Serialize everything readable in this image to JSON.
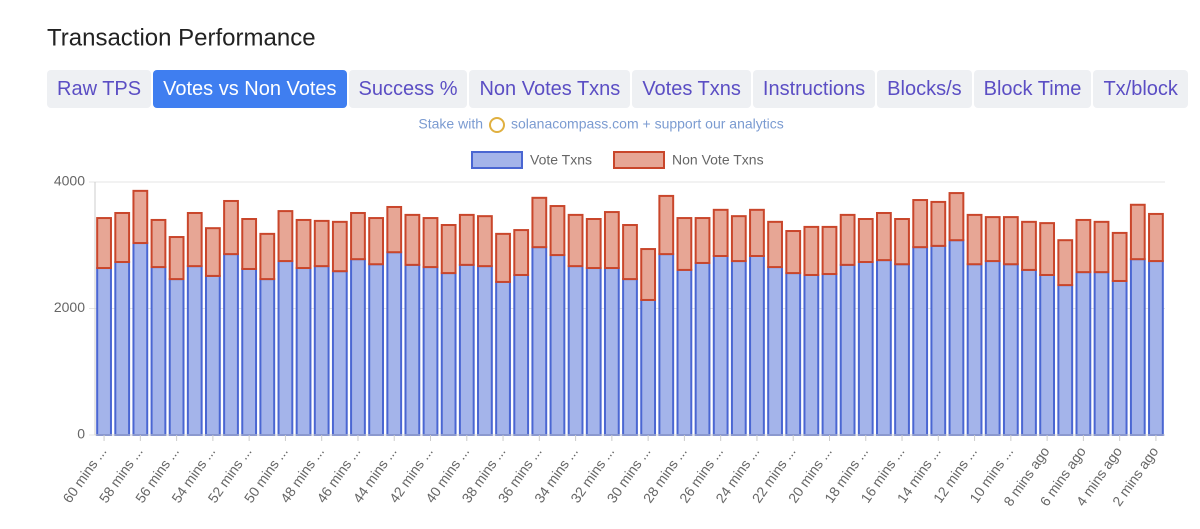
{
  "title": "Transaction Performance",
  "tabs": [
    "Raw TPS",
    "Votes vs Non Votes",
    "Success %",
    "Non Votes Txns",
    "Votes Txns",
    "Instructions",
    "Blocks/s",
    "Block Time",
    "Tx/block"
  ],
  "active_tab": 1,
  "promo": {
    "lead": "Stake with",
    "link": "solanacompass.com + support our analytics"
  },
  "chart_data": {
    "type": "stacked_bar",
    "categories": [
      "60 mins ...",
      null,
      "58 mins ...",
      null,
      "56 mins ...",
      null,
      "54 mins ...",
      null,
      "52 mins ...",
      null,
      "50 mins ...",
      null,
      "48 mins ...",
      null,
      "46 mins ...",
      null,
      "44 mins ...",
      null,
      "42 mins ...",
      null,
      "40 mins ...",
      null,
      "38 mins ...",
      null,
      "36 mins ...",
      null,
      "34 mins ...",
      null,
      "32 mins ...",
      null,
      "30 mins ...",
      null,
      "28 mins ...",
      null,
      "26 mins ...",
      null,
      "24 mins ...",
      null,
      "22 mins ...",
      null,
      "20 mins ...",
      null,
      "18 mins ...",
      null,
      "16 mins ...",
      null,
      "14 mins ...",
      null,
      "12 mins ...",
      null,
      "10 mins ...",
      null,
      "8 mins ago",
      null,
      "6 mins ago",
      null,
      "4 mins ago",
      null,
      "2 mins ago"
    ],
    "series": [
      {
        "name": "Vote Txns",
        "color": "#a4b4ea",
        "stroke": "#4a66d2",
        "values": [
          2640,
          2735,
          3035,
          2655,
          2465,
          2670,
          2515,
          2860,
          2625,
          2465,
          2750,
          2640,
          2670,
          2590,
          2780,
          2700,
          2890,
          2690,
          2655,
          2560,
          2690,
          2670,
          2420,
          2530,
          2970,
          2845,
          2670,
          2640,
          2640,
          2465,
          2135,
          2860,
          2610,
          2720,
          2830,
          2750,
          2830,
          2655,
          2560,
          2530,
          2545,
          2690,
          2735,
          2765,
          2700,
          2970,
          2990,
          3080,
          2700,
          2750,
          2700,
          2610,
          2530,
          2370,
          2575,
          2575,
          2435,
          2780,
          2750
        ]
      },
      {
        "name": "Non Vote Txns",
        "color": "#e7a695",
        "stroke": "#c9462b",
        "values": [
          790,
          775,
          825,
          745,
          665,
          840,
          755,
          840,
          790,
          715,
          790,
          760,
          715,
          780,
          730,
          730,
          715,
          790,
          775,
          760,
          790,
          790,
          760,
          710,
          780,
          775,
          810,
          775,
          885,
          855,
          805,
          920,
          820,
          710,
          730,
          710,
          730,
          715,
          665,
          760,
          745,
          790,
          680,
          745,
          715,
          745,
          695,
          745,
          780,
          695,
          745,
          760,
          820,
          710,
          825,
          795,
          760,
          860,
          745
        ]
      }
    ],
    "ylim": [
      0,
      4000
    ],
    "yticks": [
      0,
      2000,
      4000
    ],
    "grid": true,
    "legend": "top"
  }
}
